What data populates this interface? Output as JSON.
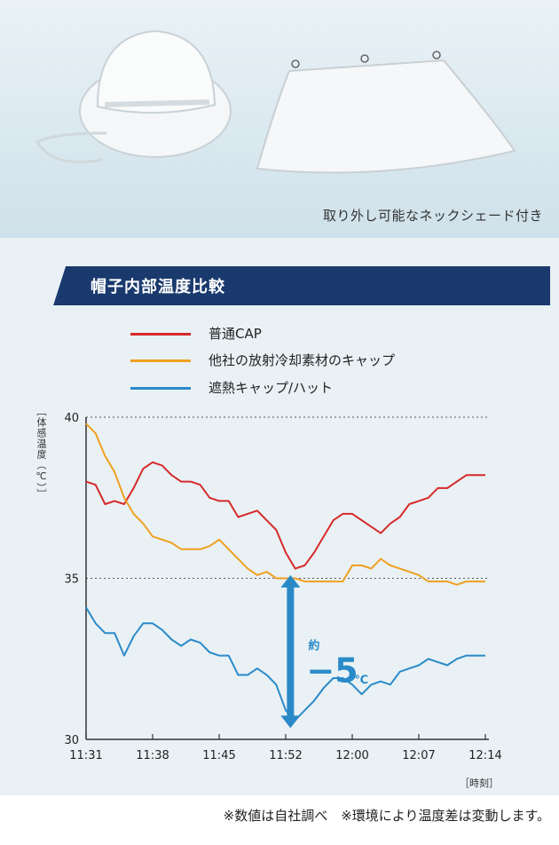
{
  "caption": "取り外し可能なネックシェード付き",
  "banner": {
    "title": "帽子内部温度比較"
  },
  "legend": [
    {
      "label": "普通CAP",
      "color": "#d62a2a"
    },
    {
      "label": "他社の放射冷却素材のキャップ",
      "color": "#f0a020"
    },
    {
      "label": "遮熱キャップ/ハット",
      "color": "#2a8ac8"
    }
  ],
  "axis": {
    "ylabel": "［体感温度（℃）］",
    "xunit": "［時刻］"
  },
  "annotation": {
    "prefix": "約",
    "value": "−5",
    "unit": "℃"
  },
  "footnote": "※数値は自社調べ　※環境により温度差は変動します。",
  "colors": {
    "banner": "#1a3a6e",
    "arrow": "#2a8ac8"
  },
  "chart_data": {
    "type": "line",
    "title": "帽子内部温度比較",
    "xlabel": "時刻",
    "ylabel": "体感温度（℃）",
    "ylim": [
      30,
      40
    ],
    "yticks": [
      30,
      35,
      40
    ],
    "xlim_minutes": [
      0,
      43
    ],
    "xticks": [
      {
        "label": "11:31",
        "t": 0
      },
      {
        "label": "11:38",
        "t": 7
      },
      {
        "label": "11:45",
        "t": 14
      },
      {
        "label": "11:52",
        "t": 21
      },
      {
        "label": "12:00",
        "t": 28
      },
      {
        "label": "12:07",
        "t": 35
      },
      {
        "label": "12:14",
        "t": 42
      }
    ],
    "series": [
      {
        "name": "普通CAP",
        "color": "#d62a2a",
        "x": [
          0,
          1,
          2,
          3,
          4,
          5,
          6,
          7,
          8,
          9,
          10,
          11,
          12,
          13,
          14,
          15,
          16,
          17,
          18,
          19,
          20,
          21,
          22,
          23,
          24,
          25,
          26,
          27,
          28,
          29,
          30,
          31,
          32,
          33,
          34,
          35,
          36,
          37,
          38,
          39,
          40,
          41,
          42
        ],
        "values": [
          38.0,
          37.9,
          37.3,
          37.4,
          37.3,
          37.8,
          38.4,
          38.6,
          38.5,
          38.2,
          38.0,
          38.0,
          37.9,
          37.5,
          37.4,
          37.4,
          36.9,
          37.0,
          37.1,
          36.8,
          36.5,
          35.8,
          35.3,
          35.4,
          35.8,
          36.3,
          36.8,
          37.0,
          37.0,
          36.8,
          36.6,
          36.4,
          36.7,
          36.9,
          37.3,
          37.4,
          37.5,
          37.8,
          37.8,
          38.0,
          38.2,
          38.2,
          38.2
        ]
      },
      {
        "name": "他社の放射冷却素材のキャップ",
        "color": "#f0a020",
        "x": [
          0,
          1,
          2,
          3,
          4,
          5,
          6,
          7,
          8,
          9,
          10,
          11,
          12,
          13,
          14,
          15,
          16,
          17,
          18,
          19,
          20,
          21,
          22,
          23,
          24,
          25,
          26,
          27,
          28,
          29,
          30,
          31,
          32,
          33,
          34,
          35,
          36,
          37,
          38,
          39,
          40,
          41,
          42
        ],
        "values": [
          39.8,
          39.5,
          38.8,
          38.3,
          37.5,
          37.0,
          36.7,
          36.3,
          36.2,
          36.1,
          35.9,
          35.9,
          35.9,
          36.0,
          36.2,
          35.9,
          35.6,
          35.3,
          35.1,
          35.2,
          35.0,
          35.0,
          35.0,
          34.9,
          34.9,
          34.9,
          34.9,
          34.9,
          35.4,
          35.4,
          35.3,
          35.6,
          35.4,
          35.3,
          35.2,
          35.1,
          34.9,
          34.9,
          34.9,
          34.8,
          34.9,
          34.9,
          34.9
        ]
      },
      {
        "name": "遮熱キャップ/ハット",
        "color": "#2a8ac8",
        "x": [
          0,
          1,
          2,
          3,
          4,
          5,
          6,
          7,
          8,
          9,
          10,
          11,
          12,
          13,
          14,
          15,
          16,
          17,
          18,
          19,
          20,
          21,
          22,
          23,
          24,
          25,
          26,
          27,
          28,
          29,
          30,
          31,
          32,
          33,
          34,
          35,
          36,
          37,
          38,
          39,
          40,
          41,
          42
        ],
        "values": [
          34.1,
          33.6,
          33.3,
          33.3,
          32.6,
          33.2,
          33.6,
          33.6,
          33.4,
          33.1,
          32.9,
          33.1,
          33.0,
          32.7,
          32.6,
          32.6,
          32.0,
          32.0,
          32.2,
          32.0,
          31.7,
          30.9,
          30.6,
          30.9,
          31.2,
          31.6,
          31.9,
          31.9,
          31.7,
          31.4,
          31.7,
          31.8,
          31.7,
          32.1,
          32.2,
          32.3,
          32.5,
          32.4,
          32.3,
          32.5,
          32.6,
          32.6,
          32.6
        ]
      }
    ]
  }
}
